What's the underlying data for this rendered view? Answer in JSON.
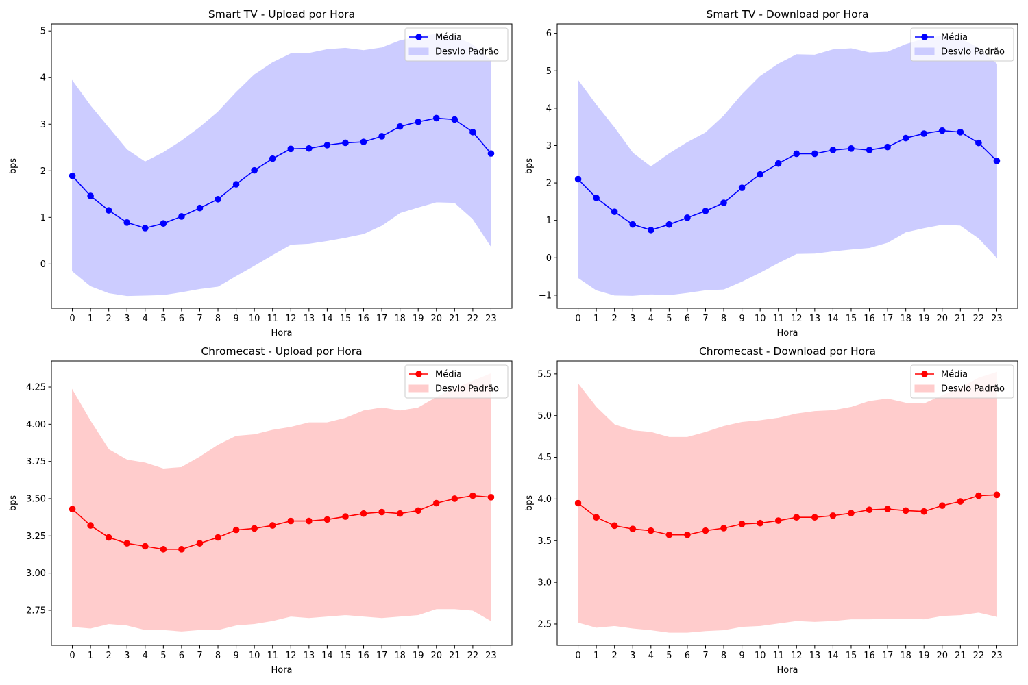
{
  "chart_data": [
    {
      "type": "line",
      "title": "Smart TV - Upload por Hora",
      "xlabel": "Hora",
      "ylabel": "bps",
      "x": [
        0,
        1,
        2,
        3,
        4,
        5,
        6,
        7,
        8,
        9,
        10,
        11,
        12,
        13,
        14,
        15,
        16,
        17,
        18,
        19,
        20,
        21,
        22,
        23
      ],
      "xlim": [
        -1.15,
        24.15
      ],
      "ylim": [
        -0.95,
        5.15
      ],
      "yticks": [
        0,
        1,
        2,
        3,
        4,
        5
      ],
      "ytick_labels": [
        "0",
        "1",
        "2",
        "3",
        "4",
        "5"
      ],
      "color": "#0000ff",
      "fill_color": "#ccccff",
      "legend_position": "upper-right",
      "series": [
        {
          "name": "Média",
          "kind": "line-markers",
          "values": [
            1.89,
            1.46,
            1.15,
            0.89,
            0.77,
            0.87,
            1.02,
            1.2,
            1.39,
            1.71,
            2.01,
            2.26,
            2.47,
            2.48,
            2.55,
            2.6,
            2.62,
            2.74,
            2.95,
            3.05,
            3.13,
            3.1,
            2.83,
            2.37
          ]
        },
        {
          "name": "Desvio Padrão",
          "kind": "band",
          "lower": [
            -0.15,
            -0.47,
            -0.62,
            -0.68,
            -0.67,
            -0.66,
            -0.6,
            -0.53,
            -0.48,
            -0.25,
            -0.03,
            0.2,
            0.42,
            0.44,
            0.5,
            0.57,
            0.65,
            0.83,
            1.1,
            1.22,
            1.33,
            1.32,
            0.97,
            0.38
          ],
          "upper": [
            3.93,
            3.39,
            2.92,
            2.45,
            2.19,
            2.39,
            2.64,
            2.93,
            3.26,
            3.68,
            4.06,
            4.32,
            4.51,
            4.52,
            4.6,
            4.63,
            4.58,
            4.64,
            4.79,
            4.88,
            4.93,
            4.88,
            4.7,
            4.36
          ]
        }
      ]
    },
    {
      "type": "line",
      "title": "Smart TV - Download por Hora",
      "xlabel": "Hora",
      "ylabel": "bps",
      "x": [
        0,
        1,
        2,
        3,
        4,
        5,
        6,
        7,
        8,
        9,
        10,
        11,
        12,
        13,
        14,
        15,
        16,
        17,
        18,
        19,
        20,
        21,
        22,
        23
      ],
      "xlim": [
        -1.15,
        24.15
      ],
      "ylim": [
        -1.35,
        6.25
      ],
      "yticks": [
        -1,
        0,
        1,
        2,
        3,
        4,
        5,
        6
      ],
      "ytick_labels": [
        "−1",
        "0",
        "1",
        "2",
        "3",
        "4",
        "5",
        "6"
      ],
      "color": "#0000ff",
      "fill_color": "#ccccff",
      "legend_position": "upper-right",
      "series": [
        {
          "name": "Média",
          "kind": "line-markers",
          "values": [
            2.1,
            1.6,
            1.23,
            0.89,
            0.74,
            0.89,
            1.07,
            1.25,
            1.47,
            1.87,
            2.23,
            2.52,
            2.78,
            2.78,
            2.88,
            2.92,
            2.88,
            2.96,
            3.2,
            3.32,
            3.4,
            3.36,
            3.07,
            2.59
          ]
        },
        {
          "name": "Desvio Padrão",
          "kind": "band",
          "lower": [
            -0.53,
            -0.86,
            -1.0,
            -1.01,
            -0.97,
            -0.99,
            -0.93,
            -0.86,
            -0.84,
            -0.63,
            -0.39,
            -0.13,
            0.11,
            0.12,
            0.18,
            0.23,
            0.27,
            0.41,
            0.69,
            0.8,
            0.89,
            0.87,
            0.53,
            0.01
          ],
          "upper": [
            4.74,
            4.08,
            3.47,
            2.8,
            2.43,
            2.78,
            3.08,
            3.34,
            3.79,
            4.36,
            4.85,
            5.18,
            5.43,
            5.42,
            5.56,
            5.59,
            5.48,
            5.5,
            5.7,
            5.85,
            5.93,
            5.85,
            5.61,
            5.18
          ]
        }
      ]
    },
    {
      "type": "line",
      "title": "Chromecast - Upload por Hora",
      "xlabel": "Hora",
      "ylabel": "bps",
      "x": [
        0,
        1,
        2,
        3,
        4,
        5,
        6,
        7,
        8,
        9,
        10,
        11,
        12,
        13,
        14,
        15,
        16,
        17,
        18,
        19,
        20,
        21,
        22,
        23
      ],
      "xlim": [
        -1.15,
        24.15
      ],
      "ylim": [
        2.515,
        4.425
      ],
      "yticks": [
        2.75,
        3.0,
        3.25,
        3.5,
        3.75,
        4.0,
        4.25
      ],
      "ytick_labels": [
        "2.75",
        "3.00",
        "3.25",
        "3.50",
        "3.75",
        "4.00",
        "4.25"
      ],
      "color": "#ff0000",
      "fill_color": "#ffcccc",
      "legend_position": "upper-right",
      "series": [
        {
          "name": "Média",
          "kind": "line-markers",
          "values": [
            3.43,
            3.32,
            3.24,
            3.2,
            3.18,
            3.16,
            3.16,
            3.2,
            3.24,
            3.29,
            3.3,
            3.32,
            3.35,
            3.35,
            3.36,
            3.38,
            3.4,
            3.41,
            3.4,
            3.42,
            3.47,
            3.5,
            3.52,
            3.51
          ]
        },
        {
          "name": "Desvio Padrão",
          "kind": "band",
          "lower": [
            2.64,
            2.63,
            2.66,
            2.65,
            2.62,
            2.62,
            2.61,
            2.62,
            2.62,
            2.65,
            2.66,
            2.68,
            2.71,
            2.7,
            2.71,
            2.72,
            2.71,
            2.7,
            2.71,
            2.72,
            2.76,
            2.76,
            2.75,
            2.68
          ],
          "upper": [
            4.23,
            4.02,
            3.83,
            3.76,
            3.74,
            3.7,
            3.71,
            3.78,
            3.86,
            3.92,
            3.93,
            3.96,
            3.98,
            4.01,
            4.01,
            4.04,
            4.09,
            4.11,
            4.09,
            4.11,
            4.18,
            4.24,
            4.29,
            4.34
          ]
        }
      ]
    },
    {
      "type": "line",
      "title": "Chromecast - Download por Hora",
      "xlabel": "Hora",
      "ylabel": "bps",
      "x": [
        0,
        1,
        2,
        3,
        4,
        5,
        6,
        7,
        8,
        9,
        10,
        11,
        12,
        13,
        14,
        15,
        16,
        17,
        18,
        19,
        20,
        21,
        22,
        23
      ],
      "xlim": [
        -1.15,
        24.15
      ],
      "ylim": [
        2.245,
        5.655
      ],
      "yticks": [
        2.5,
        3.0,
        3.5,
        4.0,
        4.5,
        5.0,
        5.5
      ],
      "ytick_labels": [
        "2.5",
        "3.0",
        "3.5",
        "4.0",
        "4.5",
        "5.0",
        "5.5"
      ],
      "color": "#ff0000",
      "fill_color": "#ffcccc",
      "legend_position": "upper-right",
      "series": [
        {
          "name": "Média",
          "kind": "line-markers",
          "values": [
            3.95,
            3.78,
            3.68,
            3.64,
            3.62,
            3.57,
            3.57,
            3.62,
            3.65,
            3.7,
            3.71,
            3.74,
            3.78,
            3.78,
            3.8,
            3.83,
            3.87,
            3.88,
            3.86,
            3.85,
            3.92,
            3.97,
            4.04,
            4.05
          ]
        },
        {
          "name": "Desvio Padrão",
          "kind": "band",
          "lower": [
            2.52,
            2.46,
            2.48,
            2.45,
            2.43,
            2.4,
            2.4,
            2.42,
            2.43,
            2.47,
            2.48,
            2.51,
            2.54,
            2.53,
            2.54,
            2.56,
            2.56,
            2.57,
            2.57,
            2.56,
            2.6,
            2.61,
            2.64,
            2.59
          ],
          "upper": [
            5.38,
            5.1,
            4.89,
            4.82,
            4.8,
            4.74,
            4.74,
            4.8,
            4.87,
            4.92,
            4.94,
            4.97,
            5.02,
            5.05,
            5.06,
            5.1,
            5.17,
            5.2,
            5.15,
            5.14,
            5.24,
            5.33,
            5.45,
            5.52
          ]
        }
      ]
    }
  ]
}
